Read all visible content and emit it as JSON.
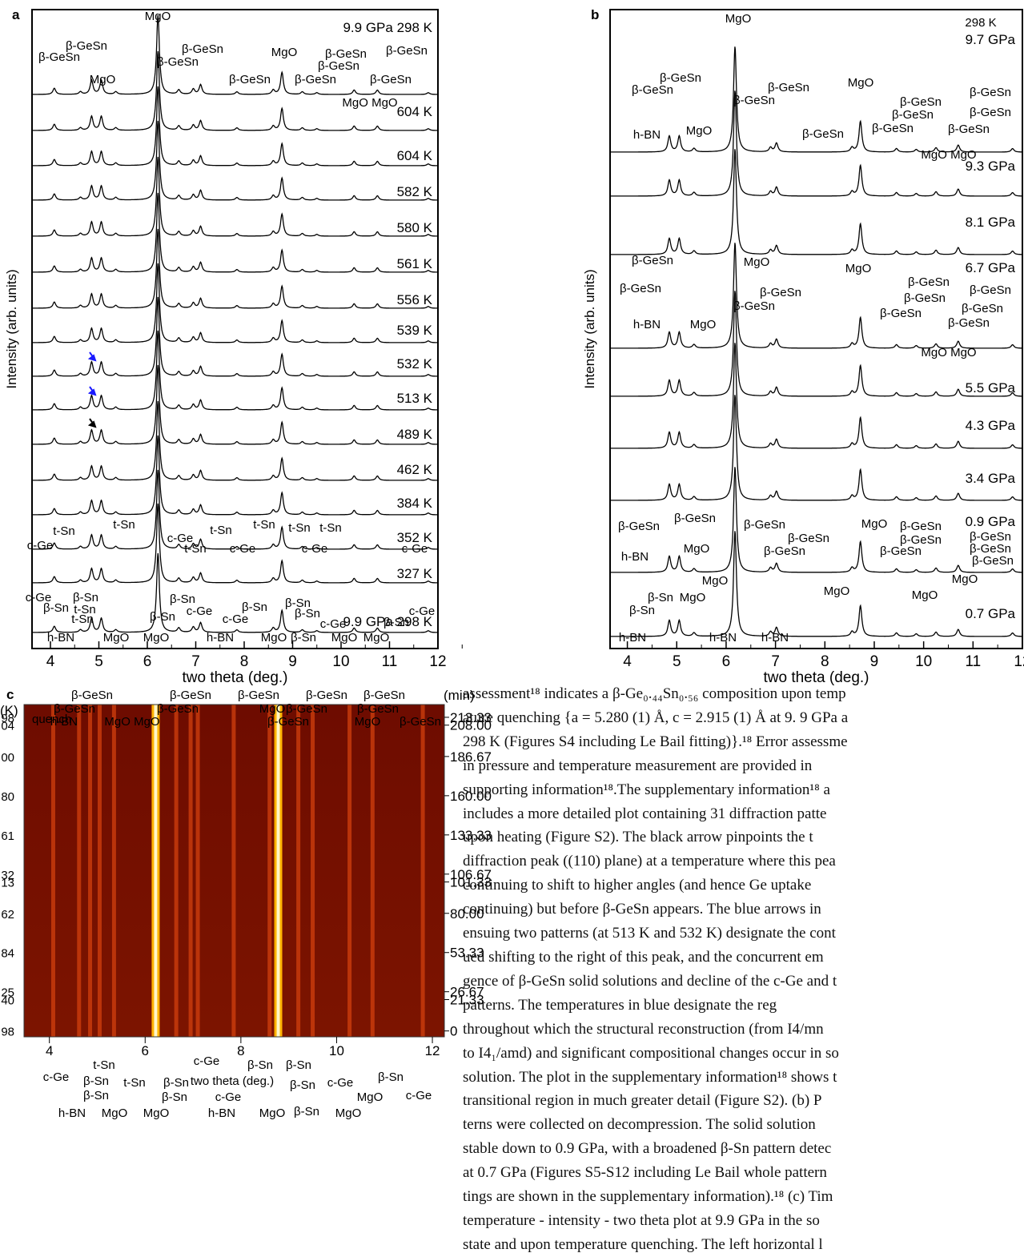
{
  "panels": [
    {
      "label": "a",
      "xlabel": "two theta (deg.)",
      "ylabel": "Intensity (arb. units)",
      "xlim": [
        3.62,
        12
      ],
      "xticks": [
        4,
        5,
        6,
        7,
        8,
        9,
        10,
        11,
        12
      ],
      "traces": [
        {
          "label": "9.9 GPa  298 K",
          "color": "#000000"
        },
        {
          "label": "604 K",
          "color": "#000000"
        },
        {
          "label": "604 K",
          "color": "#000000"
        },
        {
          "label": "582 K",
          "color": "#000000"
        },
        {
          "label": "580 K",
          "color": "#1a1aff"
        },
        {
          "label": "561 K",
          "color": "#1a1aff"
        },
        {
          "label": "556 K",
          "color": "#1a1aff"
        },
        {
          "label": "539 K",
          "color": "#1a1aff"
        },
        {
          "label": "532 K",
          "color": "#1a1aff"
        },
        {
          "label": "513 K",
          "color": "#1a1aff"
        },
        {
          "label": "489 K",
          "color": "#000000"
        },
        {
          "label": "462 K",
          "color": "#000000"
        },
        {
          "label": "384 K",
          "color": "#000000"
        },
        {
          "label": "352 K",
          "color": "#000000"
        },
        {
          "label": "327 K",
          "color": "#000000"
        },
        {
          "label": "9.9 GPa 298 K",
          "color": "#000000"
        }
      ],
      "peaks": {
        "positions": [
          4.08,
          4.62,
          4.85,
          5.05,
          5.35,
          6.22,
          6.65,
          6.95,
          7.1,
          7.85,
          8.6,
          8.78,
          9.2,
          9.5,
          10.27,
          10.75,
          11.8
        ],
        "heights": [
          0.7,
          0.3,
          1.6,
          1.6,
          0.3,
          9,
          0.5,
          0.6,
          1.1,
          0.3,
          0.5,
          2.5,
          0.3,
          0.2,
          0.5,
          0.5,
          0.2
        ]
      },
      "annotations": [
        "MgO",
        "β-GeSn",
        "β-GeSn",
        "MgO",
        "β-GeSn",
        "β-GeSn",
        "MgO",
        "β-GeSn",
        "β-GeSn",
        "β-GeSn",
        "β-GeSn",
        "β-GeSn",
        "β-GeSn",
        "MgO MgO",
        "t-Sn",
        "t-Sn",
        "c-Ge",
        "c-Ge",
        "t-Sn",
        "t-Sn",
        "t-Sn",
        "t-Sn",
        "t-Sn",
        "c-Ge",
        "c-Ge",
        "c-Ge",
        "c-Ge",
        "β-Sn",
        "β-Sn",
        "t-Sn",
        "t-Sn",
        "β-Sn",
        "c-Ge",
        "c-Ge",
        "β-Sn",
        "β-Sn",
        "β-Sn",
        "c-Ge",
        "c-Ge",
        "β-Sn",
        "β-Sn",
        "h-BN",
        "MgO",
        "MgO",
        "h-BN",
        "MgO",
        "β-Sn",
        "MgO",
        "MgO"
      ]
    },
    {
      "label": "b",
      "xlabel": "two theta (deg.)",
      "ylabel": "Intensity (arb. units)",
      "xlim": [
        3.65,
        12
      ],
      "xticks": [
        4,
        5,
        6,
        7,
        8,
        9,
        10,
        11,
        12
      ],
      "traces": [
        {
          "label": "9.7 GPa",
          "color": "#000000"
        },
        {
          "label": "9.3 GPa",
          "color": "#000000"
        },
        {
          "label": "8.1 GPa",
          "color": "#000000"
        },
        {
          "label": "6.7 GPa",
          "color": "#000000"
        },
        {
          "label": "5.5 GPa",
          "color": "#000000"
        },
        {
          "label": "4.3 GPa",
          "color": "#000000"
        },
        {
          "label": "3.4 GPa",
          "color": "#000000"
        },
        {
          "label": "0.9 GPa",
          "color": "#000000"
        },
        {
          "label": "0.7 GPa",
          "color": "#000000"
        }
      ],
      "peaks": {
        "positions": [
          4.85,
          5.05,
          5.35,
          6.18,
          6.9,
          7.02,
          8.55,
          8.72,
          9.45,
          9.85,
          10.25,
          10.7,
          11.8
        ],
        "heights": [
          1.8,
          1.8,
          0.4,
          12,
          0.5,
          1.0,
          0.5,
          3.5,
          0.4,
          0.3,
          0.5,
          0.8,
          0.4
        ]
      },
      "annotations": [
        "MgO",
        "298 K",
        "β-GeSn",
        "β-GeSn",
        "h-BN",
        "MgO",
        "β-GeSn",
        "β-GeSn",
        "MgO",
        "β-GeSn",
        "β-GeSn",
        "β-GeSn",
        "β-GeSn",
        "β-GeSn",
        "β-GeSn",
        "β-GeSn",
        "MgO MgO",
        "β-GeSn",
        "β-GeSn",
        "h-BN",
        "MgO",
        "MgO",
        "β-GeSn",
        "β-GeSn",
        "MgO",
        "β-GeSn",
        "β-GeSn",
        "β-GeSn",
        "β-GeSn",
        "β-GeSn",
        "β-GeSn",
        "MgO MgO",
        "β-GeSn",
        "β-GeSn",
        "β-GeSn",
        "MgO",
        "β-GeSn",
        "β-GeSn",
        "β-GeSn",
        "β-GeSn",
        "β-GeSn",
        "β-GeSn",
        "β-GeSn",
        "β-GeSn",
        "h-BN",
        "MgO",
        "MgO",
        "MgO",
        "MgO",
        "MgO",
        "β-Sn",
        "MgO",
        "β-Sn",
        "h-BN",
        "h-BN",
        "h-BN"
      ]
    },
    {
      "label": "c",
      "xlabel": "two theta (deg.)",
      "xlim": [
        3.47,
        12.25
      ],
      "xticks": [
        4,
        6,
        8,
        10,
        12
      ],
      "left_unit": "(K)",
      "right_unit": "(min)",
      "note": "quench",
      "ylim": [
        -4,
        222
      ],
      "yticks": [
        213.33,
        {
          "value": 208,
          "label": "208.00"
        },
        186.67,
        {
          "value": 160,
          "label": "160.00"
        },
        133.33,
        106.67,
        101.33,
        {
          "value": 80,
          "label": "80.00"
        },
        53.33,
        26.67,
        21.33,
        0
      ],
      "left_labels": [
        {
          "label": "98",
          "color": "#000000"
        },
        {
          "label": "04",
          "color": "#000000"
        },
        {
          "label": "00",
          "color": "#000000"
        },
        {
          "label": "80",
          "color": "#1a1aff"
        },
        {
          "label": "61",
          "color": "#1a1aff"
        },
        {
          "label": "32",
          "color": "#1a1aff"
        },
        {
          "label": "13",
          "color": "#1a1aff"
        },
        {
          "label": "62",
          "color": "#000000"
        },
        {
          "label": "84",
          "color": "#000000"
        },
        {
          "label": "25",
          "color": "#000000"
        },
        {
          "label": "40",
          "color": "#000000"
        },
        {
          "label": "98",
          "color": "#000000"
        }
      ],
      "annotations": [
        "β-GeSn",
        "β-GeSn",
        "h-BN",
        "MgO MgO",
        "β-GeSn",
        "β-GeSn",
        "β-GeSn",
        "MgO",
        "β-GeSn",
        "β-GeSn",
        "β-GeSn",
        "β-GeSn",
        "β-GeSn",
        "MgO",
        "β-GeSn",
        "t-Sn",
        "c-Ge",
        "β-Sn",
        "t-Sn",
        "β-Sn",
        "c-Ge",
        "β-Sn",
        "β-Sn",
        "β-Sn",
        "β-Sn",
        "c-Ge",
        "β-Sn",
        "c-Ge",
        "β-Sn",
        "c-Ge",
        "MgO",
        "h-BN",
        "MgO",
        "MgO",
        "h-BN",
        "MgO",
        "β-Sn",
        "MgO"
      ]
    }
  ],
  "paragraph": {
    "lines": [
      "assessment¹⁸ indicates a β-Ge₀.₄₄Sn₀.₅₆ composition upon temp",
      "ature quenching {a = 5.280 (1) Å, c = 2.915 (1) Å at 9. 9 GPa a",
      "298 K (Figures S4 including Le Bail fitting)}.¹⁸ Error assessme",
      "in pressure and temperature measurement are provided in",
      "supporting information¹⁸.The supplementary information¹⁸ a",
      "includes a more detailed plot containing 31 diffraction patte",
      "upon heating (Figure S2). The black arrow pinpoints the t",
      "diffraction peak ((110) plane) at a temperature where this pea",
      "continuing to shift to higher angles (and hence Ge uptake",
      "continuing) but before β-GeSn appears. The blue arrows in",
      "ensuing two patterns (at 513 K and 532 K) designate the cont",
      "ued shifting to the right of this peak, and the concurrent em",
      "gence of β-GeSn solid solutions and decline of the c-Ge and t",
      "patterns. The temperatures in blue designate the reg",
      "throughout which the structural reconstruction (from I4/mn",
      "to I4₁/amd) and significant compositional changes occur in so",
      "solution. The plot in the supplementary information¹⁸ shows t",
      "transitional region in much greater detail (Figure S2). (b) P",
      "terns were collected on decompression. The solid solution",
      "stable down to 0.9 GPa, with a broadened β-Sn pattern detec",
      "at 0.7 GPa (Figures S5-S12 including Le Bail whole pattern",
      "tings are shown in the supplementary information).¹⁸ (c) Tim",
      "temperature - intensity - two theta plot at 9.9 GPa in the so",
      "state and upon temperature quenching. The left horizontal l"
    ]
  }
}
